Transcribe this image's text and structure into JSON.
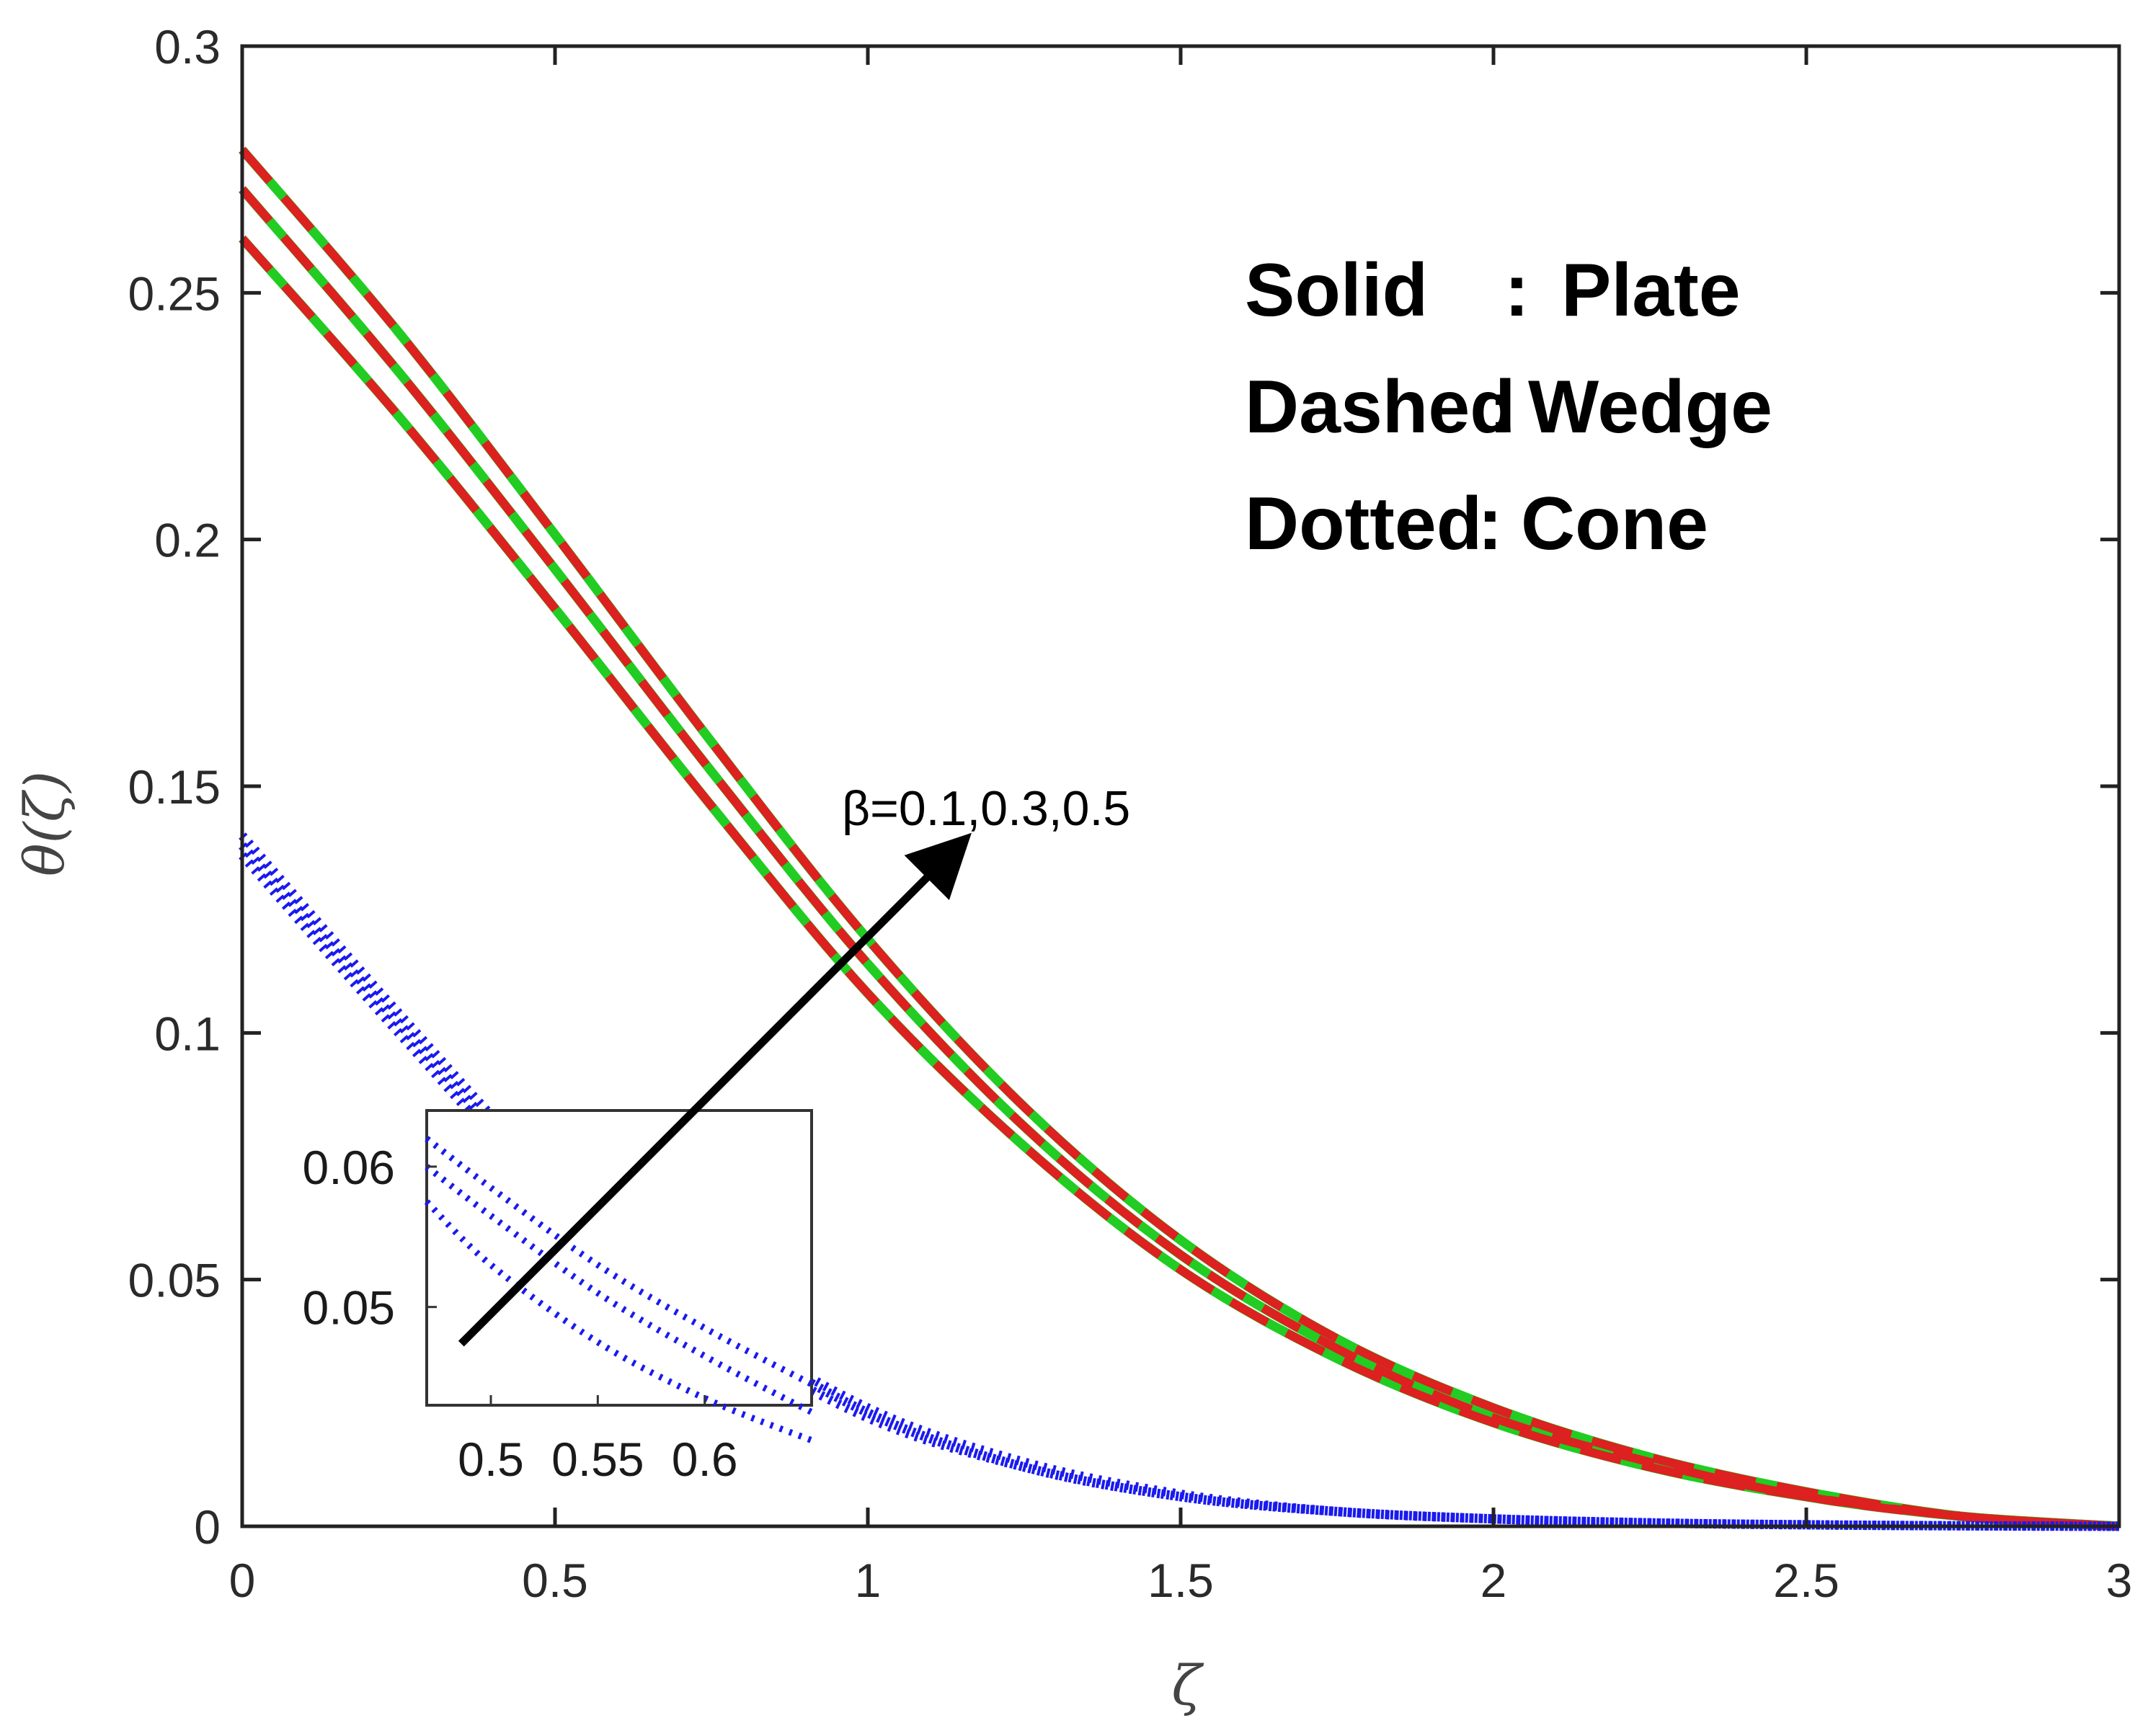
{
  "chart_data": {
    "type": "line",
    "xlabel": "ζ",
    "ylabel": "θ(ζ)",
    "xlim": [
      0,
      3
    ],
    "ylim": [
      0,
      0.3
    ],
    "xticks": [
      "0",
      "0.5",
      "1",
      "1.5",
      "2",
      "2.5",
      "3"
    ],
    "yticks": [
      "0",
      "0.05",
      "0.1",
      "0.15",
      "0.2",
      "0.25",
      "0.3"
    ],
    "grid": false,
    "legend": {
      "placement": "top-right",
      "entries": [
        {
          "style": "Solid",
          "sep": ":",
          "label": "Plate"
        },
        {
          "style": "Dashed",
          "sep": ":",
          "label": "Wedge"
        },
        {
          "style": "Dotted",
          "sep": ":",
          "label": "Cone"
        }
      ]
    },
    "annotation": {
      "text": "β=0.1,0.3,0.5",
      "arrow_from": [
        0.35,
        0.037
      ],
      "arrow_to": [
        1.13,
        0.136
      ]
    },
    "colors": {
      "plate": "#22cc22",
      "wedge": "#dd2020",
      "cone": "#1a1aee",
      "axis": "#222222"
    },
    "x": [
      0,
      0.25,
      0.5,
      0.75,
      1,
      1.25,
      1.5,
      1.75,
      2,
      2.25,
      2.5,
      2.75,
      3
    ],
    "series": [
      {
        "group": "Plate",
        "style": "solid",
        "beta": 0.1,
        "values": [
          0.261,
          0.225,
          0.186,
          0.146,
          0.108,
          0.077,
          0.052,
          0.034,
          0.021,
          0.012,
          0.006,
          0.002,
          0
        ]
      },
      {
        "group": "Plate",
        "style": "solid",
        "beta": 0.3,
        "values": [
          0.271,
          0.234,
          0.194,
          0.153,
          0.114,
          0.081,
          0.055,
          0.036,
          0.022,
          0.013,
          0.006,
          0.002,
          0
        ]
      },
      {
        "group": "Plate",
        "style": "solid",
        "beta": 0.5,
        "values": [
          0.279,
          0.242,
          0.201,
          0.159,
          0.119,
          0.085,
          0.058,
          0.038,
          0.024,
          0.014,
          0.007,
          0.002,
          0
        ]
      },
      {
        "group": "Wedge",
        "style": "dashed",
        "beta": 0.1,
        "values": [
          0.261,
          0.225,
          0.186,
          0.146,
          0.108,
          0.077,
          0.052,
          0.034,
          0.021,
          0.012,
          0.006,
          0.002,
          0
        ]
      },
      {
        "group": "Wedge",
        "style": "dashed",
        "beta": 0.3,
        "values": [
          0.271,
          0.234,
          0.194,
          0.153,
          0.114,
          0.081,
          0.055,
          0.036,
          0.022,
          0.013,
          0.006,
          0.002,
          0
        ]
      },
      {
        "group": "Wedge",
        "style": "dashed",
        "beta": 0.5,
        "values": [
          0.279,
          0.242,
          0.201,
          0.159,
          0.119,
          0.085,
          0.058,
          0.038,
          0.024,
          0.014,
          0.007,
          0.002,
          0
        ]
      },
      {
        "group": "Cone",
        "style": "dotted",
        "beta": 0.1,
        "values": [
          0.136,
          0.1,
          0.066,
          0.04,
          0.022,
          0.012,
          0.006,
          0.003,
          0.0015,
          0.0007,
          0.0003,
          0.0001,
          0
        ]
      },
      {
        "group": "Cone",
        "style": "dotted",
        "beta": 0.3,
        "values": [
          0.138,
          0.102,
          0.068,
          0.042,
          0.023,
          0.012,
          0.006,
          0.003,
          0.0015,
          0.0007,
          0.0003,
          0.0001,
          0
        ]
      },
      {
        "group": "Cone",
        "style": "dotted",
        "beta": 0.5,
        "values": [
          0.14,
          0.104,
          0.07,
          0.043,
          0.024,
          0.013,
          0.0065,
          0.003,
          0.0015,
          0.0007,
          0.0003,
          0.0001,
          0
        ]
      }
    ],
    "inset": {
      "xlim": [
        0.47,
        0.65
      ],
      "ylim": [
        0.043,
        0.064
      ],
      "xticks": [
        "0.5",
        "0.55",
        "0.6"
      ],
      "yticks": [
        "0.05",
        "0.06"
      ],
      "x": [
        0.47,
        0.5,
        0.55,
        0.6,
        0.65
      ],
      "series": [
        {
          "beta": 0.1,
          "values": [
            0.0575,
            0.053,
            0.0475,
            0.0435,
            0.0405
          ]
        },
        {
          "beta": 0.3,
          "values": [
            0.06,
            0.0565,
            0.051,
            0.0465,
            0.0425
          ]
        },
        {
          "beta": 0.5,
          "values": [
            0.062,
            0.0585,
            0.053,
            0.0485,
            0.0445
          ]
        }
      ]
    }
  }
}
